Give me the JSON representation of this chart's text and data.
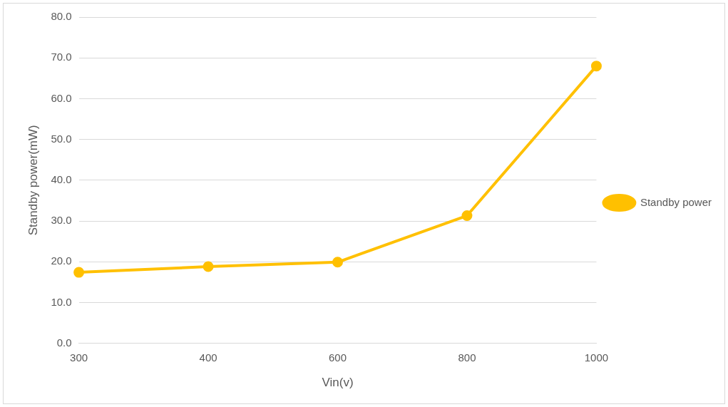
{
  "chart_data": {
    "type": "line",
    "xlabel": "Vin(v)",
    "ylabel": "Standby power(mW)",
    "categories": [
      "300",
      "400",
      "600",
      "800",
      "1000"
    ],
    "series": [
      {
        "name": "Standby power",
        "color": "#ffc000",
        "values": [
          17.4,
          18.8,
          19.9,
          31.3,
          68.0
        ]
      }
    ],
    "ylim": [
      0,
      80
    ],
    "yticks": [
      {
        "value": 0,
        "label": "0.0"
      },
      {
        "value": 10,
        "label": "10.0"
      },
      {
        "value": 20,
        "label": "20.0"
      },
      {
        "value": 30,
        "label": "30.0"
      },
      {
        "value": 40,
        "label": "40.0"
      },
      {
        "value": 50,
        "label": "50.0"
      },
      {
        "value": 60,
        "label": "60.0"
      },
      {
        "value": 70,
        "label": "70.0"
      },
      {
        "value": 80,
        "label": "80.0"
      }
    ],
    "grid": "y",
    "legend": "right",
    "marker": "circle",
    "line_style": "solid"
  }
}
